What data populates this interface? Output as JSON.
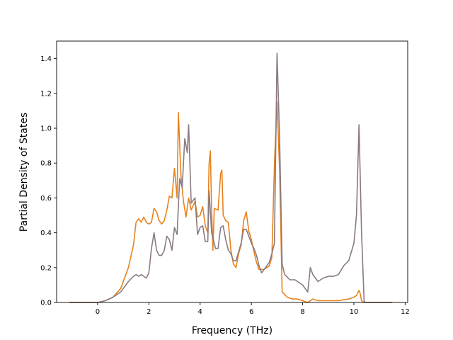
{
  "chart_data": {
    "type": "line",
    "title": "",
    "xlabel": "Frequency (THz)",
    "ylabel": "Partial Density of States",
    "xlim": [
      -1.6,
      12.1
    ],
    "ylim": [
      0.0,
      1.5
    ],
    "xticks": [
      0,
      2,
      4,
      6,
      8,
      10,
      12
    ],
    "yticks": [
      0.0,
      0.2,
      0.4,
      0.6,
      0.8,
      1.0,
      1.2,
      1.4
    ],
    "xtick_labels": [
      "0",
      "2",
      "4",
      "6",
      "8",
      "10",
      "12"
    ],
    "ytick_labels": [
      "0.0",
      "0.2",
      "0.4",
      "0.6",
      "0.8",
      "1.0",
      "1.2",
      "1.4"
    ],
    "grid": false,
    "legend": "none",
    "series": [
      {
        "color": "#e8821e",
        "points": [
          [
            -1.1,
            0.0
          ],
          [
            0.0,
            0.0
          ],
          [
            0.3,
            0.01
          ],
          [
            0.6,
            0.03
          ],
          [
            0.9,
            0.08
          ],
          [
            1.2,
            0.2
          ],
          [
            1.4,
            0.33
          ],
          [
            1.5,
            0.46
          ],
          [
            1.6,
            0.48
          ],
          [
            1.7,
            0.46
          ],
          [
            1.8,
            0.49
          ],
          [
            1.9,
            0.46
          ],
          [
            2.0,
            0.45
          ],
          [
            2.1,
            0.46
          ],
          [
            2.2,
            0.54
          ],
          [
            2.3,
            0.52
          ],
          [
            2.4,
            0.47
          ],
          [
            2.5,
            0.45
          ],
          [
            2.6,
            0.47
          ],
          [
            2.7,
            0.53
          ],
          [
            2.8,
            0.61
          ],
          [
            2.9,
            0.6
          ],
          [
            3.0,
            0.77
          ],
          [
            3.1,
            0.6
          ],
          [
            3.15,
            1.09
          ],
          [
            3.25,
            0.73
          ],
          [
            3.35,
            0.58
          ],
          [
            3.45,
            0.49
          ],
          [
            3.55,
            0.6
          ],
          [
            3.65,
            0.53
          ],
          [
            3.8,
            0.58
          ],
          [
            3.9,
            0.49
          ],
          [
            4.0,
            0.5
          ],
          [
            4.1,
            0.55
          ],
          [
            4.2,
            0.44
          ],
          [
            4.3,
            0.4
          ],
          [
            4.35,
            0.8
          ],
          [
            4.4,
            0.87
          ],
          [
            4.45,
            0.53
          ],
          [
            4.5,
            0.3
          ],
          [
            4.55,
            0.54
          ],
          [
            4.7,
            0.53
          ],
          [
            4.8,
            0.74
          ],
          [
            4.85,
            0.76
          ],
          [
            4.9,
            0.5
          ],
          [
            5.0,
            0.47
          ],
          [
            5.1,
            0.46
          ],
          [
            5.2,
            0.3
          ],
          [
            5.3,
            0.22
          ],
          [
            5.4,
            0.2
          ],
          [
            5.5,
            0.28
          ],
          [
            5.6,
            0.33
          ],
          [
            5.7,
            0.47
          ],
          [
            5.8,
            0.52
          ],
          [
            5.9,
            0.41
          ],
          [
            6.0,
            0.36
          ],
          [
            6.1,
            0.29
          ],
          [
            6.2,
            0.23
          ],
          [
            6.3,
            0.19
          ],
          [
            6.5,
            0.19
          ],
          [
            6.7,
            0.21
          ],
          [
            6.8,
            0.26
          ],
          [
            6.9,
            0.79
          ],
          [
            7.0,
            1.15
          ],
          [
            7.1,
            0.76
          ],
          [
            7.2,
            0.06
          ],
          [
            7.4,
            0.03
          ],
          [
            7.6,
            0.02
          ],
          [
            7.8,
            0.02
          ],
          [
            8.0,
            0.01
          ],
          [
            8.2,
            0.0
          ],
          [
            8.4,
            0.02
          ],
          [
            8.6,
            0.01
          ],
          [
            9.0,
            0.01
          ],
          [
            9.4,
            0.01
          ],
          [
            9.8,
            0.02
          ],
          [
            10.0,
            0.03
          ],
          [
            10.1,
            0.04
          ],
          [
            10.2,
            0.07
          ],
          [
            10.25,
            0.05
          ],
          [
            10.3,
            0.01
          ],
          [
            10.4,
            0.0
          ],
          [
            11.5,
            0.0
          ]
        ]
      },
      {
        "color": "#8a7a80",
        "points": [
          [
            -1.1,
            0.0
          ],
          [
            0.0,
            0.0
          ],
          [
            0.3,
            0.01
          ],
          [
            0.6,
            0.03
          ],
          [
            0.9,
            0.06
          ],
          [
            1.2,
            0.12
          ],
          [
            1.4,
            0.15
          ],
          [
            1.5,
            0.16
          ],
          [
            1.6,
            0.15
          ],
          [
            1.7,
            0.16
          ],
          [
            1.8,
            0.15
          ],
          [
            1.9,
            0.14
          ],
          [
            2.0,
            0.17
          ],
          [
            2.1,
            0.31
          ],
          [
            2.2,
            0.4
          ],
          [
            2.3,
            0.3
          ],
          [
            2.4,
            0.27
          ],
          [
            2.5,
            0.27
          ],
          [
            2.6,
            0.3
          ],
          [
            2.7,
            0.38
          ],
          [
            2.8,
            0.36
          ],
          [
            2.9,
            0.3
          ],
          [
            3.0,
            0.43
          ],
          [
            3.1,
            0.39
          ],
          [
            3.2,
            0.71
          ],
          [
            3.3,
            0.66
          ],
          [
            3.4,
            0.94
          ],
          [
            3.5,
            0.86
          ],
          [
            3.55,
            1.02
          ],
          [
            3.65,
            0.57
          ],
          [
            3.8,
            0.6
          ],
          [
            3.9,
            0.39
          ],
          [
            4.0,
            0.43
          ],
          [
            4.1,
            0.44
          ],
          [
            4.2,
            0.35
          ],
          [
            4.3,
            0.35
          ],
          [
            4.35,
            0.64
          ],
          [
            4.45,
            0.4
          ],
          [
            4.6,
            0.31
          ],
          [
            4.7,
            0.31
          ],
          [
            4.8,
            0.43
          ],
          [
            4.9,
            0.44
          ],
          [
            5.0,
            0.36
          ],
          [
            5.1,
            0.3
          ],
          [
            5.2,
            0.28
          ],
          [
            5.3,
            0.24
          ],
          [
            5.4,
            0.24
          ],
          [
            5.5,
            0.29
          ],
          [
            5.6,
            0.34
          ],
          [
            5.7,
            0.42
          ],
          [
            5.8,
            0.42
          ],
          [
            5.9,
            0.38
          ],
          [
            6.0,
            0.34
          ],
          [
            6.1,
            0.31
          ],
          [
            6.2,
            0.27
          ],
          [
            6.3,
            0.21
          ],
          [
            6.4,
            0.17
          ],
          [
            6.5,
            0.19
          ],
          [
            6.7,
            0.23
          ],
          [
            6.8,
            0.28
          ],
          [
            6.9,
            0.34
          ],
          [
            7.0,
            1.43
          ],
          [
            7.1,
            0.95
          ],
          [
            7.2,
            0.22
          ],
          [
            7.3,
            0.16
          ],
          [
            7.5,
            0.13
          ],
          [
            7.7,
            0.13
          ],
          [
            8.0,
            0.1
          ],
          [
            8.2,
            0.06
          ],
          [
            8.3,
            0.2
          ],
          [
            8.4,
            0.16
          ],
          [
            8.6,
            0.12
          ],
          [
            8.8,
            0.14
          ],
          [
            9.0,
            0.15
          ],
          [
            9.2,
            0.15
          ],
          [
            9.4,
            0.16
          ],
          [
            9.6,
            0.21
          ],
          [
            9.8,
            0.24
          ],
          [
            10.0,
            0.34
          ],
          [
            10.1,
            0.5
          ],
          [
            10.2,
            1.02
          ],
          [
            10.3,
            0.4
          ],
          [
            10.4,
            0.0
          ],
          [
            11.5,
            0.0
          ]
        ]
      }
    ]
  }
}
